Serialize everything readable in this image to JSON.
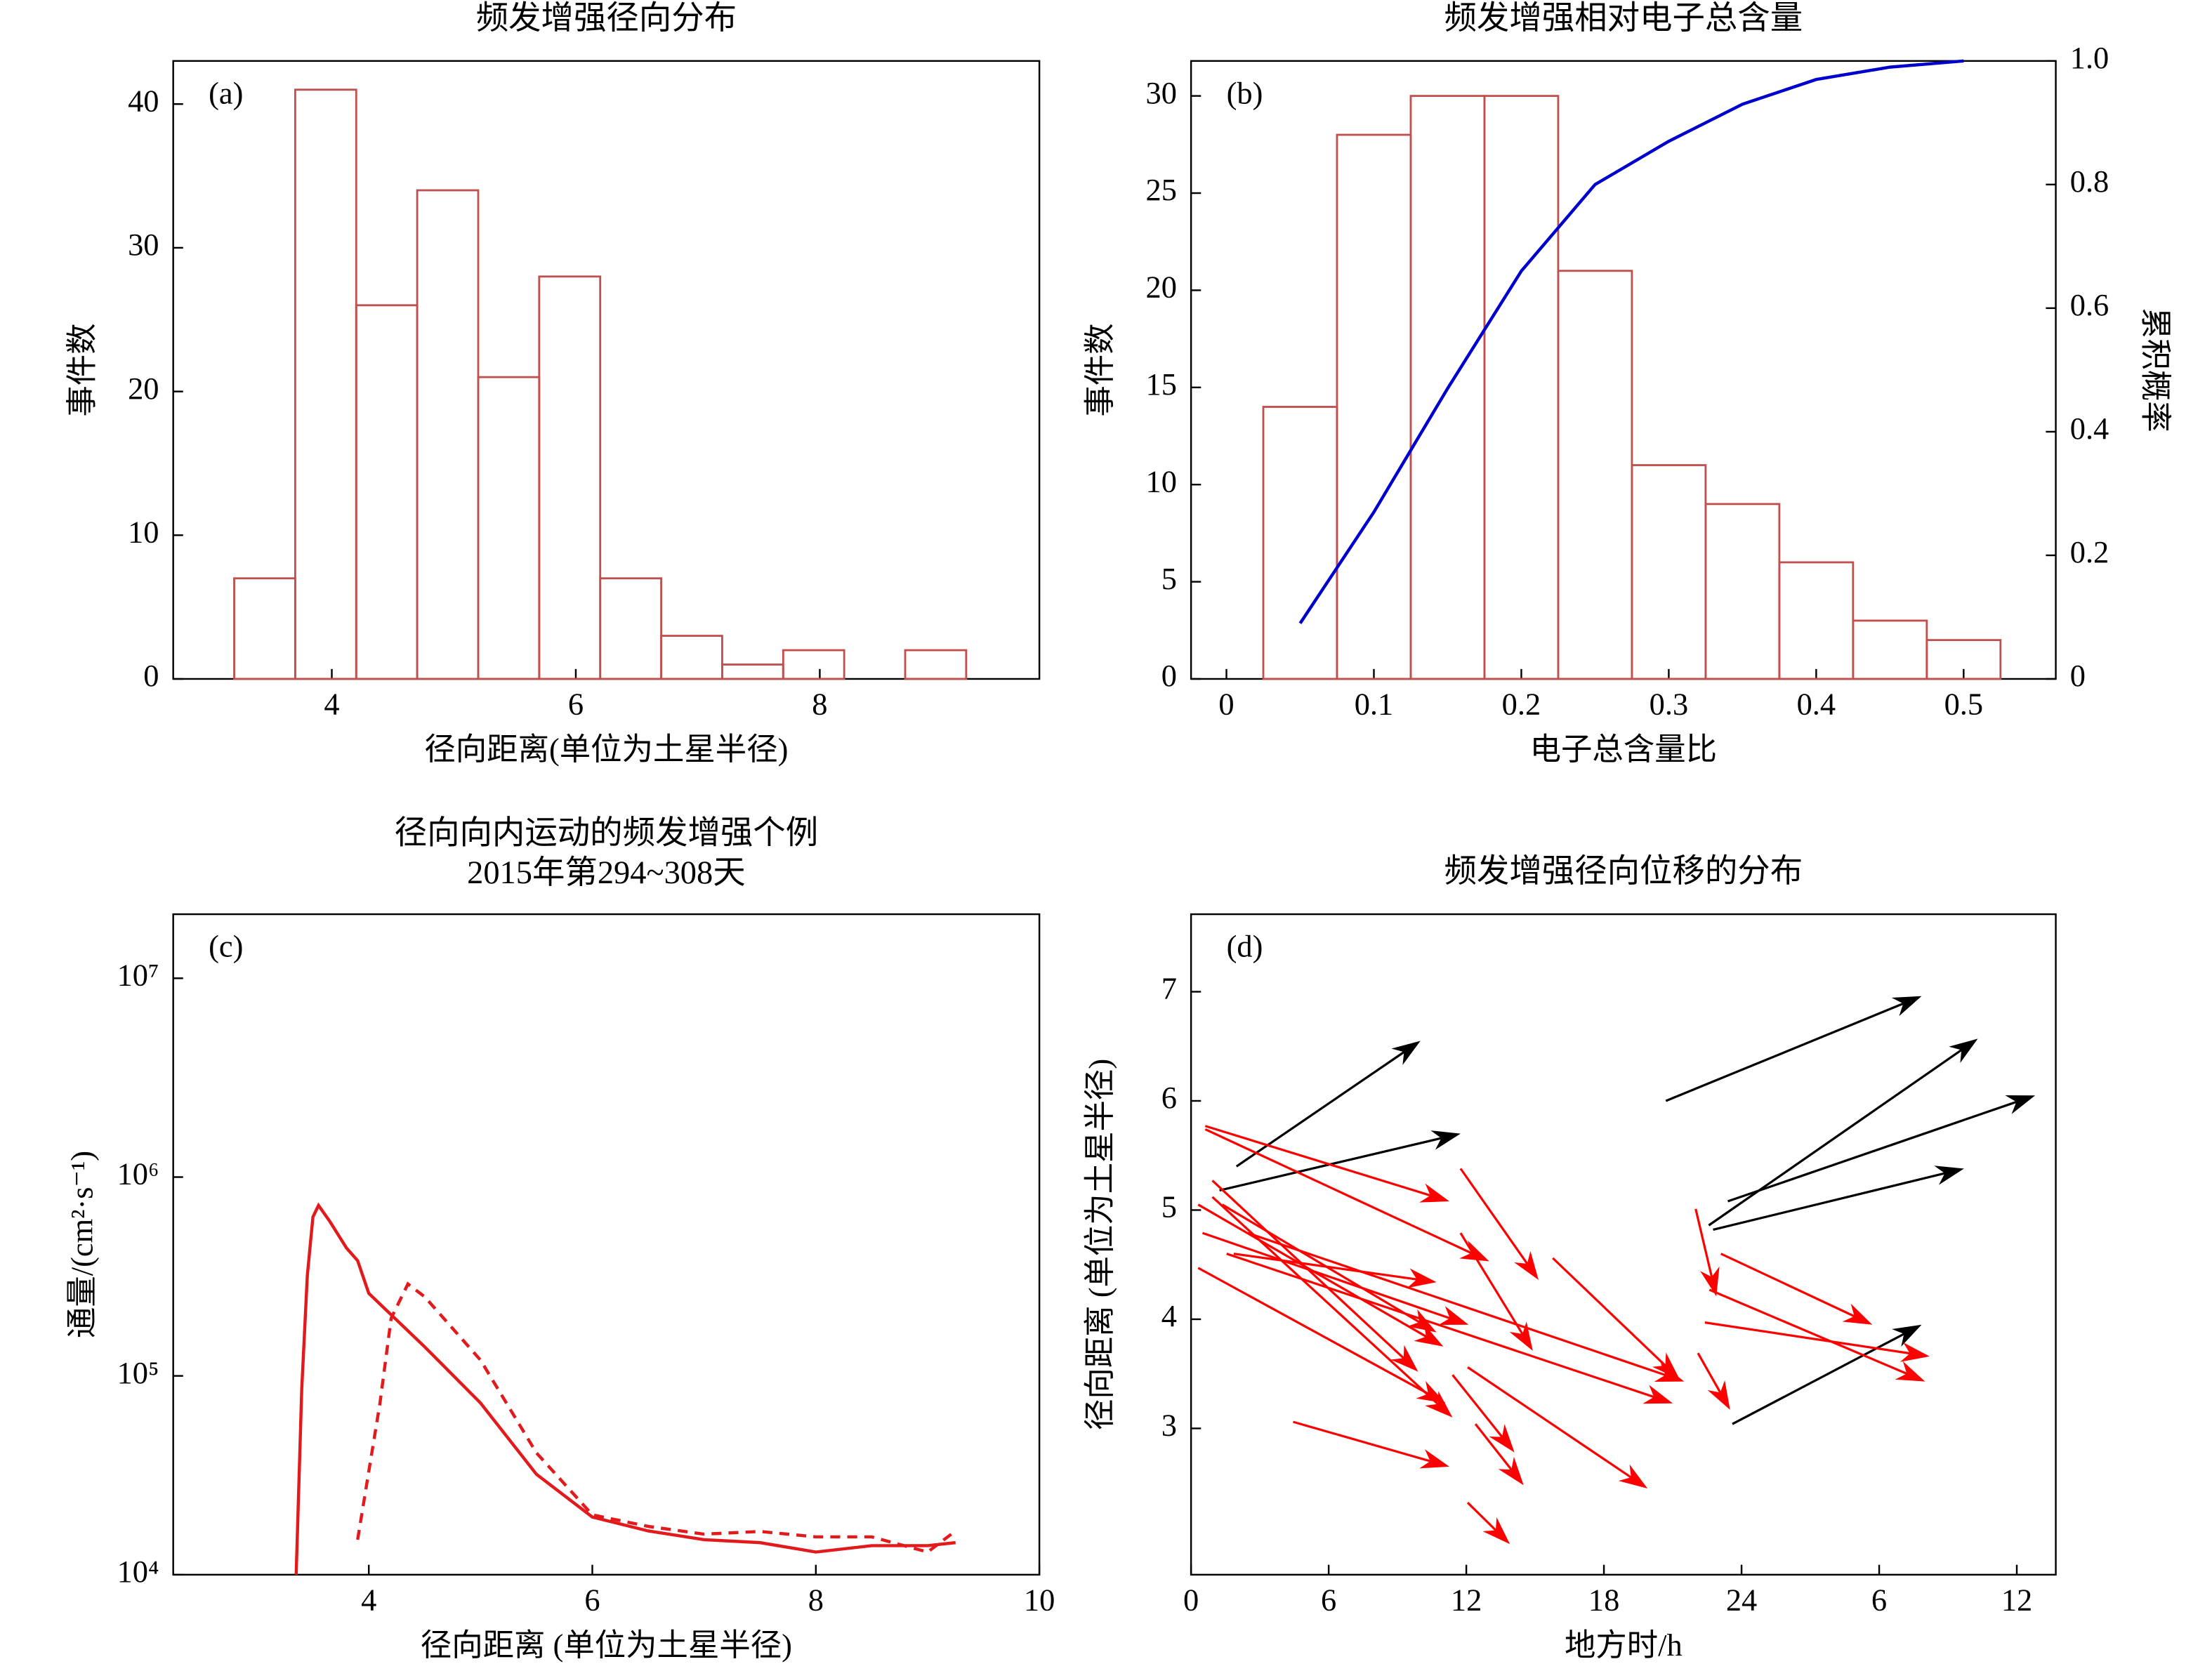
{
  "chart_data": [
    {
      "type": "histogram",
      "title": "频发增强径向分布",
      "xlabel": "径向距离(单位为土星半径)",
      "ylabel": "事件数",
      "annotation": "(a)",
      "bins": [
        3.2,
        3.7,
        4.2,
        4.7,
        5.2,
        5.7,
        6.2,
        6.7,
        7.2,
        7.7,
        8.2,
        8.7,
        9.2
      ],
      "counts": [
        7,
        41,
        26,
        34,
        21,
        28,
        7,
        3,
        1,
        2,
        0,
        2
      ],
      "color": "#c0504d",
      "xlim": [
        2.7,
        9.8
      ],
      "xticks": [
        4,
        6,
        8
      ],
      "ylim": [
        0,
        43
      ],
      "yticks": [
        0,
        10,
        20,
        30,
        40
      ]
    },
    {
      "type": "histogram",
      "title": "频发增强相对电子总含量",
      "xlabel": "电子总含量比",
      "ylabel": "事件数",
      "y2label": "累积概率",
      "annotation": "(b)",
      "bins": [
        0.025,
        0.075,
        0.125,
        0.175,
        0.225,
        0.275,
        0.325,
        0.375,
        0.425,
        0.475,
        0.525
      ],
      "counts": [
        14,
        28,
        30,
        30,
        21,
        11,
        9,
        6,
        3,
        2
      ],
      "color": "#c0504d",
      "xlim": [
        -0.024,
        0.5625
      ],
      "xticks": [
        0,
        0.1,
        0.2,
        0.3,
        0.4,
        0.5
      ],
      "ylim": [
        0,
        31.8
      ],
      "yticks": [
        0,
        5,
        10,
        15,
        20,
        25,
        30
      ],
      "y2lim": [
        0,
        1
      ],
      "y2ticks": [
        0,
        0.2,
        0.4,
        0.6,
        0.8,
        {
          "value": 1,
          "label": "1.0"
        }
      ],
      "series": [
        {
          "color": "#0000cc",
          "axis": "y2",
          "x": [
            0.05,
            0.1,
            0.15,
            0.2,
            0.25,
            0.3,
            0.35,
            0.4,
            0.45,
            0.5
          ],
          "values": [
            0.09,
            0.27,
            0.47,
            0.66,
            0.8,
            0.87,
            0.93,
            0.97,
            0.99,
            1.0
          ]
        }
      ]
    },
    {
      "type": "line",
      "title": [
        "径向向内运动的频发增强个例",
        "2015年第294~308天"
      ],
      "xlabel": "径向距离 (单位为土星半径)",
      "ylabel": "通量/(cm²·s⁻¹)",
      "annotation": "(c)",
      "xlim": [
        2.25,
        10
      ],
      "xticks": [
        4,
        6,
        8,
        10
      ],
      "yscale": "log",
      "ylim": [
        10000,
        21000000
      ],
      "yticks": [
        {
          "value": 10000,
          "label": "10⁴"
        },
        {
          "value": 100000,
          "label": "10⁵"
        },
        {
          "value": 1000000,
          "label": "10⁶"
        },
        {
          "value": 10000000,
          "label": "10⁷"
        }
      ],
      "series": [
        {
          "color": "#e31a1c",
          "dash": false,
          "x": [
            3.35,
            3.4,
            3.45,
            3.5,
            3.55,
            3.65,
            3.8,
            3.9,
            4.0,
            4.5,
            5.0,
            5.5,
            6.0,
            6.5,
            7.0,
            7.5,
            8.0,
            8.5,
            9.0,
            9.25
          ],
          "values": [
            10000,
            86000,
            320000,
            630000,
            720000,
            600000,
            440000,
            380000,
            260000,
            140000,
            73000,
            32000,
            19500,
            16600,
            15000,
            14500,
            13000,
            14000,
            14000,
            14500
          ]
        },
        {
          "color": "#e31a1c",
          "dash": true,
          "x": [
            3.9,
            4.1,
            4.2,
            4.35,
            4.5,
            5.0,
            5.5,
            6.0,
            6.5,
            7.0,
            7.5,
            8.0,
            8.5,
            9.0,
            9.25
          ],
          "values": [
            15000,
            73000,
            195000,
            290000,
            250000,
            120000,
            41000,
            20000,
            17500,
            16000,
            16500,
            15500,
            15500,
            13000,
            16600
          ]
        }
      ]
    },
    {
      "type": "vector",
      "title": "频发增强径向位移的分布",
      "xlabel": "地方时/h",
      "ylabel": "径向距离 (单位为土星半径)",
      "annotation": "(d)",
      "xlim": [
        0,
        37.7
      ],
      "xticks": [
        0,
        6,
        12,
        18,
        24,
        {
          "value": 30,
          "label": "6"
        },
        {
          "value": 36,
          "label": "12"
        }
      ],
      "ylim": [
        1.66,
        7.71
      ],
      "yticks": [
        3,
        4,
        5,
        6,
        7
      ],
      "series": [
        {
          "color": "#000000",
          "x": [
            1.98,
            1.24,
            20.7,
            22.57,
            23.4,
            22.76,
            23.6
          ],
          "y": [
            5.4,
            5.18,
            6.0,
            4.86,
            5.08,
            4.82,
            3.04
          ],
          "x_end": [
            10.0,
            11.75,
            31.85,
            34.3,
            36.8,
            33.7,
            31.85
          ],
          "y_end": [
            6.55,
            5.7,
            6.96,
            6.57,
            6.05,
            5.38,
            3.95
          ]
        },
        {
          "color": "#ff0000",
          "x": [
            0.62,
            0.62,
            0.93,
            0.93,
            0.31,
            0.5,
            1.86,
            0.31,
            1.36,
            1.55,
            2.47,
            11.75,
            11.75,
            11.4,
            12.06,
            12.4,
            4.45,
            12.06,
            15.77,
            22.0,
            23.1,
            22.4,
            22.6,
            22.1
          ],
          "y": [
            5.77,
            5.74,
            5.27,
            5.12,
            5.05,
            4.79,
            4.6,
            4.47,
            5.05,
            4.6,
            4.79,
            5.38,
            4.79,
            3.49,
            3.56,
            3.04,
            3.06,
            2.32,
            4.56,
            5.01,
            4.6,
            3.97,
            4.27,
            3.69
          ],
          "x_end": [
            11.26,
            13.0,
            9.9,
            11.4,
            11.0,
            12.1,
            10.7,
            11.1,
            10.7,
            21.0,
            21.5,
            15.15,
            14.9,
            14.1,
            19.9,
            14.5,
            11.26,
            13.9,
            21.3,
            22.9,
            29.7,
            32.2,
            32.0,
            23.5
          ],
          "y_end": [
            5.08,
            4.53,
            3.52,
            3.1,
            3.75,
            3.95,
            4.34,
            3.23,
            3.88,
            3.23,
            3.43,
            4.36,
            3.71,
            2.78,
            2.45,
            2.48,
            2.65,
            1.94,
            3.45,
            4.21,
            3.95,
            3.66,
            3.43,
            3.17
          ]
        }
      ]
    }
  ]
}
